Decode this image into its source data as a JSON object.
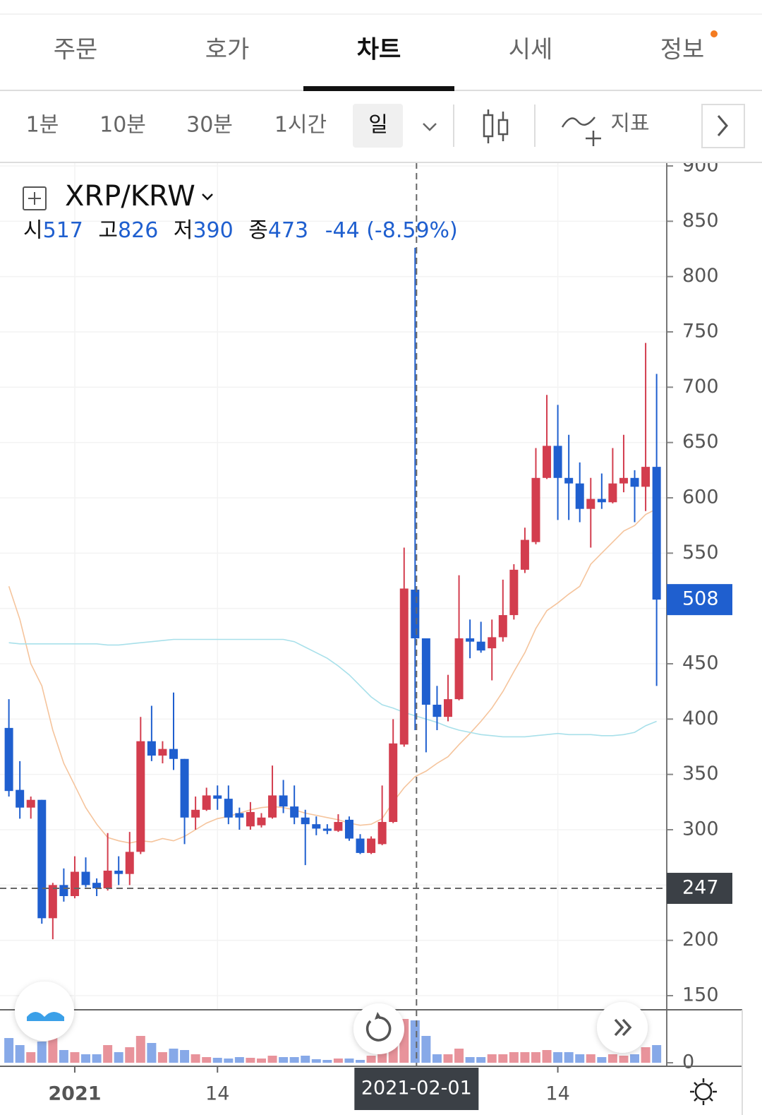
{
  "tabs": [
    "주문",
    "호가",
    "차트",
    "시세",
    "정보"
  ],
  "intervals": [
    "1분",
    "10분",
    "30분",
    "1시간",
    "일"
  ],
  "indicator_button": "지표",
  "symbol": "XRP/KRW",
  "ohlc_labels": [
    "시",
    "고",
    "저",
    "종"
  ],
  "change": "-44 (-8.59%)",
  "chart_data": {
    "type": "candlestick",
    "categories": [
      null,
      null,
      null,
      null,
      null,
      null,
      "2021",
      null,
      null,
      null,
      null,
      null,
      null,
      null,
      null,
      null,
      null,
      null,
      null,
      "14",
      null,
      null,
      null,
      null,
      null,
      null,
      null,
      null,
      null,
      null,
      null,
      null,
      null,
      null,
      null,
      null,
      null,
      "2021-02-01",
      null,
      null,
      null,
      null,
      null,
      null,
      null,
      null,
      null,
      null,
      null,
      null,
      "14",
      null,
      null,
      null,
      null,
      null,
      null,
      null,
      null,
      null
    ],
    "open": [
      392,
      336,
      320,
      327,
      220,
      250,
      240,
      262,
      252,
      247,
      263,
      260,
      280,
      380,
      367,
      373,
      364,
      311,
      318,
      331,
      328,
      315,
      303,
      304,
      311,
      331,
      321,
      311,
      305,
      301,
      299,
      309,
      292,
      279,
      287,
      307,
      377,
      517,
      473,
      413,
      402,
      418,
      473,
      470,
      464,
      474,
      494,
      535,
      560,
      618,
      647,
      618,
      613,
      590,
      599,
      596,
      613,
      618,
      610,
      628
    ],
    "high": [
      418,
      362,
      330,
      327,
      252,
      265,
      276,
      275,
      256,
      297,
      276,
      298,
      402,
      412,
      380,
      424,
      364,
      330,
      338,
      340,
      340,
      320,
      325,
      315,
      358,
      345,
      340,
      318,
      312,
      305,
      314,
      312,
      296,
      294,
      340,
      400,
      555,
      826,
      473,
      430,
      440,
      530,
      490,
      488,
      490,
      526,
      540,
      573,
      645,
      693,
      684,
      657,
      632,
      618,
      622,
      645,
      657,
      625,
      740,
      712
    ],
    "low": [
      330,
      310,
      310,
      215,
      201,
      235,
      238,
      248,
      240,
      245,
      250,
      250,
      278,
      362,
      360,
      354,
      287,
      300,
      317,
      318,
      305,
      300,
      300,
      302,
      310,
      315,
      305,
      268,
      295,
      296,
      298,
      290,
      278,
      278,
      286,
      306,
      375,
      390,
      370,
      390,
      398,
      417,
      455,
      460,
      435,
      470,
      490,
      532,
      558,
      617,
      580,
      580,
      578,
      555,
      590,
      595,
      605,
      578,
      588,
      430
    ],
    "close": [
      335,
      320,
      327,
      220,
      250,
      240,
      262,
      250,
      247,
      263,
      260,
      280,
      380,
      367,
      373,
      364,
      311,
      318,
      331,
      328,
      311,
      311,
      316,
      311,
      331,
      321,
      311,
      305,
      301,
      299,
      307,
      292,
      279,
      292,
      307,
      378,
      518,
      473,
      413,
      402,
      418,
      473,
      470,
      462,
      474,
      494,
      535,
      562,
      618,
      647,
      618,
      613,
      590,
      599,
      596,
      613,
      618,
      610,
      628,
      508
    ],
    "up_color": "#d33d4e",
    "down_color": "#1f5fcf",
    "ylim": [
      150,
      900
    ],
    "yticks": [
      150,
      200,
      250,
      300,
      350,
      400,
      450,
      500,
      550,
      600,
      650,
      700,
      750,
      800,
      850,
      900
    ],
    "grid": true,
    "lines": [
      {
        "color": "#f5c49c",
        "values": [
          520,
          490,
          450,
          430,
          390,
          360,
          340,
          320,
          305,
          293,
          290,
          288,
          290,
          289,
          292,
          290,
          294,
          300,
          306,
          310,
          312,
          315,
          318,
          320,
          321,
          320,
          318,
          315,
          313,
          311,
          309,
          306,
          304,
          305,
          310,
          325,
          338,
          348,
          353,
          360,
          366,
          377,
          387,
          398,
          410,
          425,
          443,
          460,
          482,
          498,
          505,
          513,
          520,
          540,
          550,
          560,
          570,
          575,
          585,
          590
        ]
      },
      {
        "color": "#a8e0ea",
        "values": [
          469,
          468,
          468,
          468,
          468,
          468,
          468,
          468,
          468,
          467,
          467,
          468,
          469,
          470,
          471,
          472,
          472,
          472,
          472,
          472,
          472,
          472,
          472,
          472,
          472,
          472,
          470,
          465,
          460,
          455,
          448,
          440,
          430,
          420,
          413,
          410,
          406,
          403,
          400,
          397,
          393,
          390,
          388,
          386,
          385,
          384,
          384,
          384,
          385,
          386,
          387,
          386,
          386,
          386,
          385,
          385,
          386,
          388,
          394,
          398
        ]
      }
    ],
    "volume": {
      "ylim": [
        0,
        75
      ],
      "yticks": [
        0
      ],
      "values": [
        35,
        25,
        15,
        30,
        40,
        18,
        15,
        12,
        12,
        25,
        15,
        22,
        38,
        28,
        15,
        20,
        18,
        12,
        8,
        7,
        6,
        8,
        7,
        6,
        10,
        8,
        8,
        10,
        5,
        4,
        6,
        6,
        4,
        10,
        18,
        28,
        62,
        60,
        38,
        12,
        12,
        20,
        8,
        8,
        12,
        12,
        15,
        15,
        15,
        18,
        15,
        15,
        12,
        12,
        8,
        12,
        10,
        12,
        22,
        25
      ]
    },
    "crosshair": {
      "y": 247,
      "index": 37
    }
  }
}
